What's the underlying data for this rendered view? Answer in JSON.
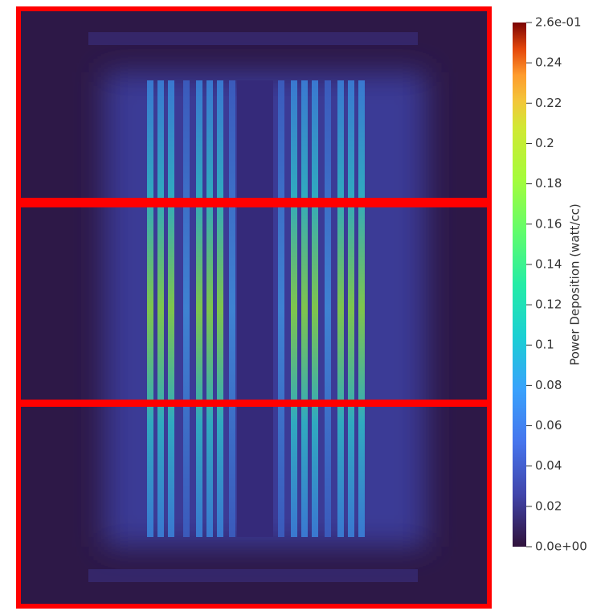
{
  "chart_data": {
    "type": "heatmap",
    "colorbar_label": "Power Deposition (watt/cc)",
    "clim": [
      0,
      0.26
    ],
    "cticks": [
      {
        "value": 0.26,
        "label": "2.6e-01"
      },
      0.24,
      0.22,
      0.2,
      0.18,
      0.16,
      0.14,
      0.12,
      0.1,
      0.08,
      0.06,
      0.04,
      0.02,
      {
        "value": 0,
        "label": "0.0e+00"
      }
    ]
  }
}
